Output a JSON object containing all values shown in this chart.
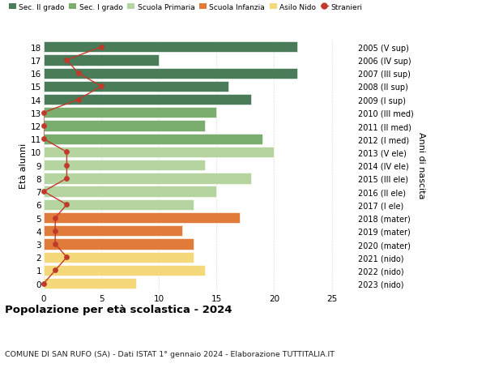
{
  "ages": [
    18,
    17,
    16,
    15,
    14,
    13,
    12,
    11,
    10,
    9,
    8,
    7,
    6,
    5,
    4,
    3,
    2,
    1,
    0
  ],
  "bar_values": [
    22,
    10,
    22,
    16,
    18,
    15,
    14,
    19,
    20,
    14,
    18,
    15,
    13,
    17,
    12,
    13,
    13,
    14,
    8
  ],
  "bar_colors": [
    "#4a7c59",
    "#4a7c59",
    "#4a7c59",
    "#4a7c59",
    "#4a7c59",
    "#7aad6e",
    "#7aad6e",
    "#7aad6e",
    "#b5d4a0",
    "#b5d4a0",
    "#b5d4a0",
    "#b5d4a0",
    "#b5d4a0",
    "#e07b39",
    "#e07b39",
    "#e07b39",
    "#f5d87a",
    "#f5d87a",
    "#f5d87a"
  ],
  "stranieri_values": [
    5,
    2,
    3,
    5,
    3,
    0,
    0,
    0,
    2,
    2,
    2,
    0,
    2,
    1,
    1,
    1,
    2,
    1,
    0
  ],
  "right_labels": [
    "2005 (V sup)",
    "2006 (IV sup)",
    "2007 (III sup)",
    "2008 (II sup)",
    "2009 (I sup)",
    "2010 (III med)",
    "2011 (II med)",
    "2012 (I med)",
    "2013 (V ele)",
    "2014 (IV ele)",
    "2015 (III ele)",
    "2016 (II ele)",
    "2017 (I ele)",
    "2018 (mater)",
    "2019 (mater)",
    "2020 (mater)",
    "2021 (nido)",
    "2022 (nido)",
    "2023 (nido)"
  ],
  "legend_labels": [
    "Sec. II grado",
    "Sec. I grado",
    "Scuola Primaria",
    "Scuola Infanzia",
    "Asilo Nido",
    "Stranieri"
  ],
  "legend_colors": [
    "#4a7c59",
    "#7aad6e",
    "#b5d4a0",
    "#e07b39",
    "#f5d87a",
    "#c0392b"
  ],
  "title": "Popolazione per età scolastica - 2024",
  "subtitle": "COMUNE DI SAN RUFO (SA) - Dati ISTAT 1° gennaio 2024 - Elaborazione TUTTITALIA.IT",
  "ylabel_left": "Età alunni",
  "ylabel_right": "Anni di nascita",
  "xlim": [
    0,
    27
  ],
  "stranieri_color": "#c0392b",
  "background_color": "#ffffff",
  "bar_height": 0.82,
  "grid_color": "#dddddd"
}
